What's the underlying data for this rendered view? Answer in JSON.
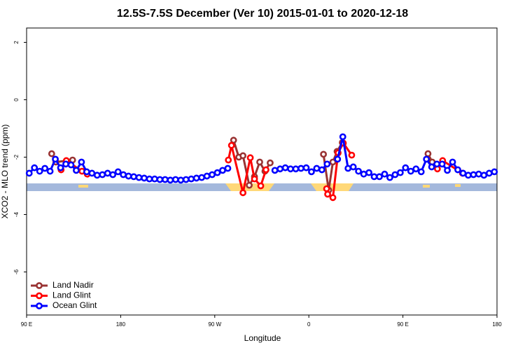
{
  "chart_data": {
    "type": "line",
    "title": "12.5S-7.5S December (Ver 10)   2015-01-01 to 2020-12-18",
    "x_label": "Longitude",
    "y_label": "XCO2 - MLO trend (ppm)",
    "xlim": [
      90,
      540
    ],
    "ylim": [
      -7.5,
      2.5
    ],
    "xticks": [
      {
        "value": 90,
        "label": "90 E"
      },
      180,
      {
        "value": 270,
        "label": "90 W"
      },
      {
        "value": 360,
        "label": "0"
      },
      {
        "value": 450,
        "label": "90 E"
      },
      {
        "value": 540,
        "label": "180"
      }
    ],
    "yticks": [
      -6,
      -4,
      -2,
      0,
      2
    ],
    "legend": "bottom-left",
    "series": [
      {
        "name": "Land Nadir",
        "color": "#993333",
        "x": [
          114,
          118,
          134,
          null,
          288,
          293,
          297,
          303,
          308,
          313,
          318,
          323,
          null,
          374,
          379,
          383,
          387,
          392,
          null,
          474,
          478
        ],
        "values": [
          -1.88,
          -2.17,
          -2.1,
          null,
          -1.41,
          -2.0,
          -1.95,
          -2.98,
          -2.68,
          -2.17,
          -2.49,
          -2.2,
          null,
          -1.9,
          -3.15,
          -2.17,
          -1.8,
          -1.49,
          null,
          -1.88,
          -2.17
        ]
      },
      {
        "name": "Land Glint",
        "color": "#ff0000",
        "x": [
          123,
          128,
          143,
          148,
          null,
          283,
          286,
          297,
          304,
          308,
          314,
          319,
          null,
          377,
          378,
          383,
          388,
          393,
          401,
          null,
          483,
          488,
          507
        ],
        "values": [
          -2.44,
          -2.12,
          -2.49,
          -2.59,
          null,
          -2.1,
          -1.59,
          -3.24,
          -2.02,
          -2.76,
          -3.0,
          -2.44,
          null,
          -3.1,
          -3.29,
          -3.41,
          -1.85,
          -1.51,
          -1.93,
          null,
          -2.41,
          -2.12,
          -2.56
        ]
      },
      {
        "name": "Ocean Glint",
        "color": "#0000ff",
        "x": [
          92.5,
          97.5,
          102.5,
          107.5,
          112.5,
          117.5,
          122.5,
          127.5,
          132.5,
          137.5,
          142.5,
          147.5,
          152.5,
          157.5,
          162.5,
          167.5,
          172.5,
          177.5,
          182.5,
          187.5,
          192.5,
          197.5,
          202.5,
          207.5,
          212.5,
          217.5,
          222.5,
          227.5,
          232.5,
          237.5,
          242.5,
          247.5,
          252.5,
          257.5,
          262.5,
          267.5,
          272.5,
          277.5,
          282.5,
          287.5,
          292.5,
          297.5,
          302.5,
          307.5,
          312.5,
          317.5,
          322.5,
          327.5,
          332.5,
          337.5,
          342.5,
          347.5,
          352.5,
          357.5,
          362.5,
          367.5,
          372.5,
          377.5,
          382.5,
          387.5,
          392.5,
          397.5,
          402.5,
          407.5,
          412.5,
          417.5,
          422.5,
          427.5,
          432.5,
          437.5,
          442.5,
          447.5,
          452.5,
          457.5,
          462.5,
          467.5,
          472.5,
          477.5,
          482.5,
          487.5,
          492.5,
          497.5,
          502.5,
          507.5,
          512.5,
          517.5,
          522.5,
          527.5,
          532.5,
          537.5
        ],
        "values": [
          -2.56,
          -2.37,
          -2.49,
          -2.39,
          -2.49,
          -2.07,
          -2.37,
          -2.24,
          -2.27,
          -2.46,
          -2.17,
          -2.51,
          -2.56,
          -2.63,
          -2.61,
          -2.56,
          -2.61,
          -2.51,
          -2.61,
          -2.66,
          -2.68,
          -2.71,
          -2.73,
          -2.76,
          -2.76,
          -2.78,
          -2.78,
          -2.8,
          -2.78,
          -2.8,
          -2.78,
          -2.76,
          -2.73,
          -2.71,
          -2.66,
          -2.61,
          -2.54,
          -2.46,
          -2.39,
          null,
          null,
          null,
          null,
          null,
          null,
          null,
          null,
          -2.46,
          -2.41,
          -2.37,
          -2.41,
          -2.41,
          -2.39,
          -2.37,
          -2.51,
          -2.39,
          -2.44,
          -2.24,
          null,
          -2.07,
          -1.29,
          -2.39,
          -2.34,
          -2.49,
          -2.59,
          -2.54,
          -2.68,
          -2.68,
          -2.59,
          -2.71,
          -2.61,
          -2.54,
          -2.37,
          -2.49,
          -2.41,
          -2.51,
          -2.07,
          -2.34,
          -2.24,
          -2.24,
          -2.46,
          -2.17,
          -2.44,
          -2.56,
          -2.63,
          -2.61,
          -2.59,
          -2.63,
          -2.56,
          -2.51
        ]
      }
    ]
  }
}
